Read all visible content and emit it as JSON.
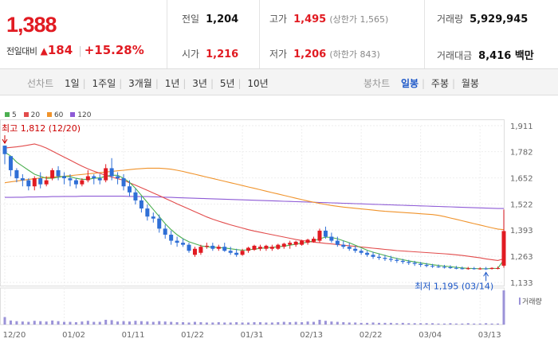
{
  "price": {
    "current": "1,388",
    "change_label": "전일대비",
    "change_arrow": "▲",
    "change_value": "184",
    "change_pct": "+15.28%"
  },
  "stats": {
    "prev_close": {
      "label": "전일",
      "value": "1,204"
    },
    "open": {
      "label": "시가",
      "value": "1,216"
    },
    "high": {
      "label": "고가",
      "value": "1,495",
      "sub": "(상한가 1,565)"
    },
    "low": {
      "label": "저가",
      "value": "1,206",
      "sub": "(하한가 843)"
    },
    "volume": {
      "label": "거래량",
      "value": "5,929,945"
    },
    "amount": {
      "label": "거래대금",
      "value": "8,416 백만"
    }
  },
  "toolbar": {
    "line_label": "선차트",
    "line_options": [
      "1일",
      "1주일",
      "3개월",
      "1년",
      "3년",
      "5년",
      "10년"
    ],
    "candle_label": "봉차트",
    "candle_options": [
      "일봉",
      "주봉",
      "월봉"
    ],
    "candle_active": "일봉"
  },
  "colors": {
    "up": "#e11b22",
    "down": "#2f6fd6",
    "ma5": "#4caf50",
    "ma20": "#e24b4b",
    "ma60": "#f0932b",
    "ma120": "#8e5bd6",
    "volume": "#9b93d8"
  },
  "chart_data": {
    "type": "candlestick",
    "legend": [
      {
        "name": "5",
        "color": "#4caf50"
      },
      {
        "name": "20",
        "color": "#e24b4b"
      },
      {
        "name": "60",
        "color": "#f0932b"
      },
      {
        "name": "120",
        "color": "#8e5bd6"
      }
    ],
    "y_ticks": [
      1133,
      1263,
      1393,
      1522,
      1652,
      1782,
      1911
    ],
    "y_tick_labels": [
      "1,133",
      "1,263",
      "1,393",
      "1,522",
      "1,652",
      "1,782",
      "1,911"
    ],
    "ylim": [
      1133,
      1911
    ],
    "x_tick_labels": [
      "12/20",
      "01/02",
      "01/11",
      "01/22",
      "01/31",
      "02/13",
      "02/22",
      "03/04",
      "03/13"
    ],
    "x_tick_index": [
      0,
      10,
      20,
      30,
      40,
      50,
      60,
      70,
      80
    ],
    "annotation_high": "최고 1,812 (12/20)",
    "annotation_low": "최저 1,195 (03/14)",
    "high_index": 0,
    "high_value": 1812,
    "low_index": 81,
    "low_value": 1195,
    "volume_label": "거래량",
    "candles": [
      [
        1812,
        1812,
        1720,
        1770
      ],
      [
        1760,
        1760,
        1660,
        1690
      ],
      [
        1690,
        1700,
        1630,
        1650
      ],
      [
        1650,
        1670,
        1610,
        1640
      ],
      [
        1640,
        1650,
        1590,
        1610
      ],
      [
        1610,
        1660,
        1590,
        1650
      ],
      [
        1650,
        1680,
        1600,
        1620
      ],
      [
        1620,
        1660,
        1610,
        1640
      ],
      [
        1650,
        1700,
        1640,
        1690
      ],
      [
        1690,
        1710,
        1640,
        1660
      ],
      [
        1660,
        1680,
        1620,
        1650
      ],
      [
        1650,
        1670,
        1610,
        1640
      ],
      [
        1640,
        1650,
        1600,
        1620
      ],
      [
        1620,
        1650,
        1610,
        1640
      ],
      [
        1640,
        1690,
        1630,
        1660
      ],
      [
        1660,
        1670,
        1620,
        1650
      ],
      [
        1650,
        1670,
        1620,
        1640
      ],
      [
        1640,
        1720,
        1630,
        1700
      ],
      [
        1700,
        1750,
        1640,
        1660
      ],
      [
        1660,
        1680,
        1620,
        1650
      ],
      [
        1650,
        1670,
        1590,
        1610
      ],
      [
        1610,
        1640,
        1560,
        1580
      ],
      [
        1580,
        1600,
        1520,
        1540
      ],
      [
        1540,
        1560,
        1480,
        1500
      ],
      [
        1500,
        1520,
        1440,
        1460
      ],
      [
        1460,
        1480,
        1430,
        1450
      ],
      [
        1450,
        1470,
        1380,
        1400
      ],
      [
        1400,
        1420,
        1350,
        1370
      ],
      [
        1370,
        1390,
        1320,
        1340
      ],
      [
        1340,
        1360,
        1310,
        1330
      ],
      [
        1330,
        1350,
        1310,
        1320
      ],
      [
        1320,
        1330,
        1280,
        1290
      ],
      [
        1270,
        1310,
        1260,
        1300
      ],
      [
        1280,
        1320,
        1270,
        1310
      ],
      [
        1310,
        1330,
        1300,
        1315
      ],
      [
        1315,
        1330,
        1290,
        1300
      ],
      [
        1300,
        1320,
        1290,
        1310
      ],
      [
        1310,
        1330,
        1285,
        1290
      ],
      [
        1290,
        1310,
        1270,
        1280
      ],
      [
        1280,
        1300,
        1260,
        1270
      ],
      [
        1270,
        1300,
        1265,
        1290
      ],
      [
        1290,
        1310,
        1280,
        1305
      ],
      [
        1295,
        1320,
        1290,
        1315
      ],
      [
        1300,
        1320,
        1290,
        1310
      ],
      [
        1300,
        1320,
        1290,
        1315
      ],
      [
        1300,
        1320,
        1290,
        1310
      ],
      [
        1300,
        1325,
        1295,
        1320
      ],
      [
        1310,
        1330,
        1300,
        1325
      ],
      [
        1320,
        1340,
        1300,
        1330
      ],
      [
        1320,
        1340,
        1310,
        1335
      ],
      [
        1320,
        1345,
        1315,
        1340
      ],
      [
        1330,
        1350,
        1320,
        1345
      ],
      [
        1335,
        1360,
        1330,
        1350
      ],
      [
        1340,
        1400,
        1330,
        1390
      ],
      [
        1390,
        1410,
        1350,
        1360
      ],
      [
        1360,
        1380,
        1330,
        1340
      ],
      [
        1340,
        1360,
        1310,
        1320
      ],
      [
        1320,
        1340,
        1300,
        1310
      ],
      [
        1310,
        1330,
        1290,
        1300
      ],
      [
        1300,
        1315,
        1280,
        1290
      ],
      [
        1290,
        1300,
        1270,
        1280
      ],
      [
        1280,
        1290,
        1260,
        1270
      ],
      [
        1270,
        1285,
        1250,
        1260
      ],
      [
        1260,
        1275,
        1245,
        1255
      ],
      [
        1255,
        1270,
        1240,
        1250
      ],
      [
        1250,
        1265,
        1235,
        1245
      ],
      [
        1245,
        1255,
        1230,
        1240
      ],
      [
        1240,
        1250,
        1225,
        1235
      ],
      [
        1235,
        1245,
        1220,
        1230
      ],
      [
        1230,
        1240,
        1215,
        1225
      ],
      [
        1225,
        1235,
        1210,
        1220
      ],
      [
        1220,
        1230,
        1208,
        1215
      ],
      [
        1215,
        1225,
        1205,
        1212
      ],
      [
        1212,
        1222,
        1205,
        1210
      ],
      [
        1210,
        1220,
        1202,
        1208
      ],
      [
        1208,
        1218,
        1200,
        1205
      ],
      [
        1205,
        1215,
        1198,
        1203
      ],
      [
        1203,
        1212,
        1197,
        1200
      ],
      [
        1200,
        1210,
        1196,
        1203
      ],
      [
        1203,
        1210,
        1196,
        1200
      ],
      [
        1200,
        1208,
        1196,
        1202
      ],
      [
        1202,
        1210,
        1195,
        1200
      ],
      [
        1200,
        1208,
        1197,
        1205
      ],
      [
        1204,
        1212,
        1198,
        1204
      ],
      [
        1216,
        1495,
        1206,
        1388
      ]
    ],
    "ma5": [
      1780,
      1760,
      1730,
      1710,
      1690,
      1670,
      1660,
      1650,
      1650,
      1655,
      1660,
      1658,
      1650,
      1645,
      1645,
      1650,
      1652,
      1660,
      1665,
      1665,
      1650,
      1630,
      1600,
      1565,
      1530,
      1495,
      1460,
      1425,
      1395,
      1370,
      1350,
      1335,
      1325,
      1315,
      1310,
      1308,
      1306,
      1304,
      1300,
      1296,
      1293,
      1295,
      1298,
      1302,
      1305,
      1307,
      1310,
      1313,
      1318,
      1323,
      1328,
      1333,
      1340,
      1350,
      1358,
      1356,
      1350,
      1340,
      1330,
      1318,
      1305,
      1293,
      1283,
      1275,
      1267,
      1259,
      1252,
      1246,
      1240,
      1235,
      1230,
      1225,
      1221,
      1217,
      1214,
      1211,
      1208,
      1205,
      1203,
      1202,
      1201,
      1201,
      1202,
      1203,
      1245
    ],
    "ma20": [
      1800,
      1803,
      1806,
      1810,
      1815,
      1820,
      1812,
      1800,
      1785,
      1770,
      1755,
      1740,
      1725,
      1710,
      1697,
      1685,
      1675,
      1665,
      1656,
      1648,
      1640,
      1628,
      1616,
      1603,
      1590,
      1577,
      1564,
      1550,
      1537,
      1523,
      1510,
      1497,
      1484,
      1471,
      1458,
      1447,
      1437,
      1428,
      1419,
      1411,
      1403,
      1395,
      1388,
      1382,
      1376,
      1370,
      1364,
      1358,
      1352,
      1346,
      1341,
      1337,
      1333,
      1330,
      1327,
      1324,
      1321,
      1318,
      1315,
      1312,
      1309,
      1306,
      1303,
      1300,
      1297,
      1294,
      1291,
      1289,
      1287,
      1285,
      1283,
      1281,
      1279,
      1277,
      1275,
      1273,
      1270,
      1267,
      1263,
      1259,
      1255,
      1250,
      1246,
      1242,
      1250
    ],
    "ma60": [
      1628,
      1632,
      1636,
      1640,
      1644,
      1648,
      1651,
      1654,
      1656,
      1658,
      1660,
      1663,
      1666,
      1669,
      1672,
      1675,
      1678,
      1681,
      1684,
      1687,
      1690,
      1693,
      1696,
      1698,
      1700,
      1700,
      1700,
      1698,
      1695,
      1690,
      1684,
      1677,
      1670,
      1663,
      1656,
      1649,
      1642,
      1635,
      1628,
      1621,
      1614,
      1607,
      1600,
      1593,
      1586,
      1579,
      1572,
      1565,
      1558,
      1551,
      1544,
      1537,
      1531,
      1525,
      1520,
      1515,
      1511,
      1507,
      1504,
      1501,
      1498,
      1495,
      1492,
      1489,
      1486,
      1484,
      1482,
      1480,
      1478,
      1476,
      1474,
      1472,
      1470,
      1466,
      1460,
      1453,
      1446,
      1439,
      1432,
      1425,
      1418,
      1411,
      1404,
      1398,
      1395
    ],
    "ma120": [
      1555,
      1555,
      1556,
      1556,
      1557,
      1557,
      1558,
      1558,
      1559,
      1559,
      1560,
      1560,
      1560,
      1561,
      1561,
      1561,
      1561,
      1561,
      1561,
      1561,
      1561,
      1560,
      1560,
      1559,
      1559,
      1558,
      1557,
      1556,
      1555,
      1554,
      1553,
      1552,
      1551,
      1550,
      1549,
      1548,
      1547,
      1546,
      1545,
      1544,
      1543,
      1542,
      1541,
      1540,
      1539,
      1538,
      1537,
      1536,
      1535,
      1534,
      1533,
      1532,
      1531,
      1530,
      1529,
      1528,
      1527,
      1526,
      1525,
      1524,
      1523,
      1522,
      1521,
      1520,
      1519,
      1518,
      1517,
      1516,
      1515,
      1514,
      1513,
      1512,
      1511,
      1510,
      1509,
      1508,
      1507,
      1506,
      1505,
      1504,
      1503,
      1502,
      1501,
      1500,
      1500
    ],
    "volume": [
      22,
      12,
      10,
      9,
      8,
      11,
      10,
      9,
      12,
      10,
      8,
      8,
      7,
      9,
      11,
      8,
      8,
      14,
      13,
      9,
      10,
      9,
      11,
      10,
      9,
      8,
      10,
      9,
      8,
      7,
      7,
      6,
      8,
      7,
      6,
      6,
      7,
      6,
      6,
      7,
      6,
      6,
      7,
      7,
      6,
      6,
      7,
      8,
      7,
      8,
      7,
      9,
      8,
      14,
      11,
      9,
      8,
      7,
      6,
      6,
      5,
      5,
      6,
      5,
      5,
      5,
      4,
      5,
      4,
      4,
      4,
      4,
      4,
      3,
      3,
      4,
      3,
      3,
      4,
      3,
      3,
      4,
      3,
      3,
      100
    ]
  }
}
